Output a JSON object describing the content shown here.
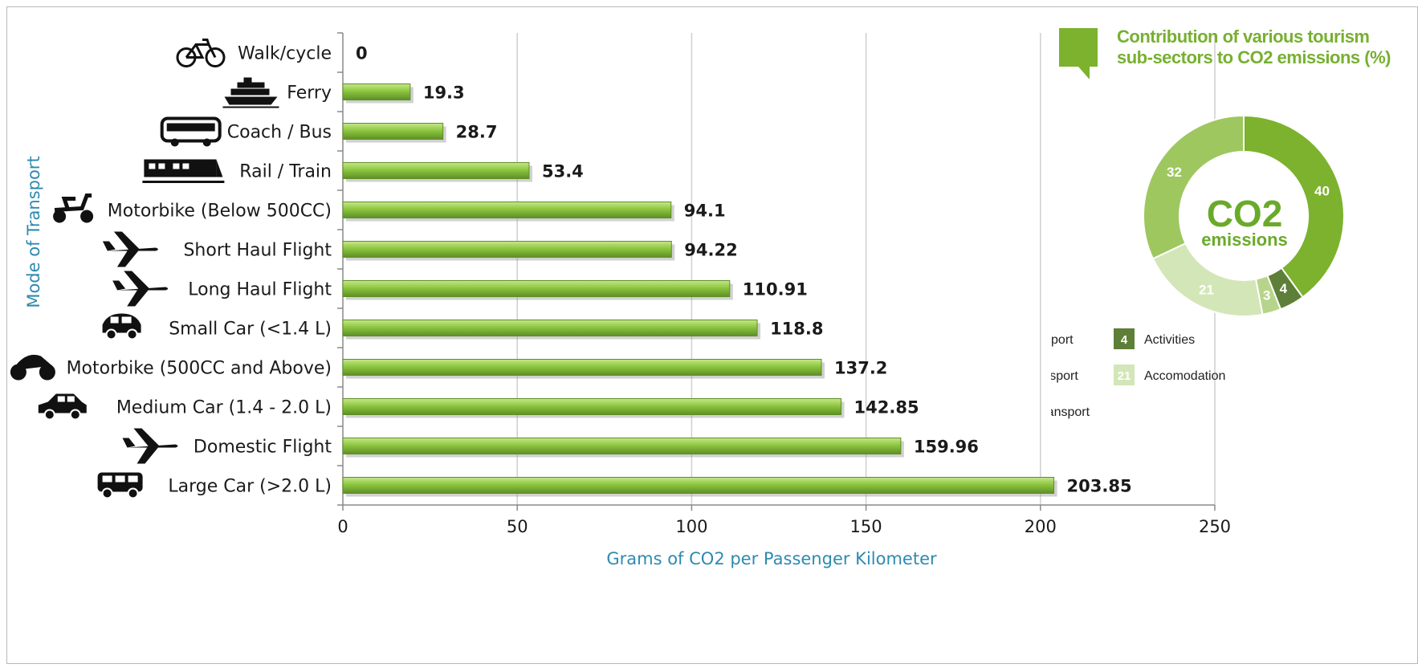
{
  "chart_data": [
    {
      "type": "bar",
      "orientation": "horizontal",
      "categories": [
        "Walk/cycle",
        "Ferry",
        "Coach / Bus",
        "Rail / Train",
        "Motorbike (Below 500CC)",
        "Short Haul Flight",
        "Long Haul Flight",
        "Small Car (<1.4 L)",
        "Motorbike (500CC and Above)",
        "Medium Car (1.4 - 2.0 L)",
        "Domestic Flight",
        "Large Car (>2.0 L)"
      ],
      "values": [
        0,
        19.3,
        28.7,
        53.4,
        94.1,
        94.22,
        110.91,
        118.8,
        137.2,
        142.85,
        159.96,
        203.85
      ],
      "value_labels": [
        "0",
        "19.3",
        "28.7",
        "53.4",
        "94.1",
        "94.22",
        "110.91",
        "118.8",
        "137.2",
        "142.85",
        "159.96",
        "203.85"
      ],
      "category_icons": [
        "bicycle-icon",
        "ferry-icon",
        "bus-icon",
        "train-icon",
        "scooter-icon",
        "airplane-icon",
        "airplane-icon",
        "small-car-icon",
        "motorbike-icon",
        "car-icon",
        "airplane-icon",
        "suv-icon"
      ],
      "xlabel": "Grams of CO2 per Passenger Kilometer",
      "ylabel": "Mode of Transport",
      "xlim": [
        0,
        250
      ],
      "xticks": [
        0,
        50,
        100,
        150,
        200,
        250
      ],
      "xtick_labels": [
        "0",
        "50",
        "100",
        "150",
        "200",
        "250"
      ],
      "grid": "vertical",
      "bar_color": "#8dc63f",
      "bar_color_dark": "#5e8f26",
      "axis_title_color": "#2e8ab0"
    },
    {
      "type": "pie",
      "variant": "donut",
      "title_lines": [
        "Contribution of various tourism",
        "sub-sectors to CO2 emissions (%)"
      ],
      "center_main": "CO2",
      "center_sub": "emissions",
      "slices": [
        {
          "label": "Air Transport",
          "value": 40,
          "value_label": "40",
          "color": "#7cb22e"
        },
        {
          "label": "Activities",
          "value": 4,
          "value_label": "4",
          "color": "#5e7f38"
        },
        {
          "label": "Other Transport",
          "value": 3,
          "value_label": "3",
          "color": "#b6d58a"
        },
        {
          "label": "Accomodation",
          "value": 21,
          "value_label": "21",
          "color": "#d3e6b8"
        },
        {
          "label": "Car Transport",
          "value": 32,
          "value_label": "32",
          "color": "#9ec760"
        }
      ],
      "legend_placement": "bottom",
      "title_color": "#77b030"
    }
  ]
}
